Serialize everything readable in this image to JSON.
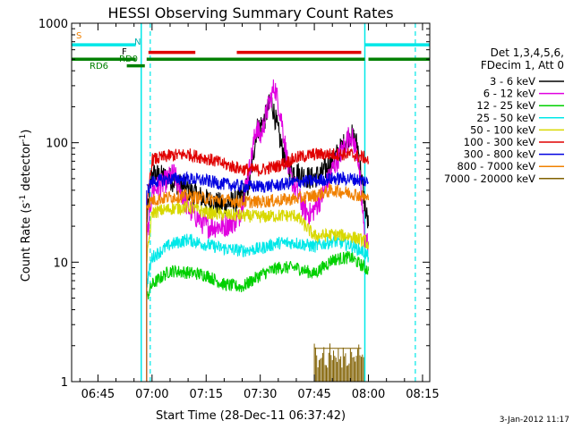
{
  "chart_data": {
    "type": "line",
    "title": "HESSI Observing Summary Count Rates",
    "xlabel": "Start Time (28-Dec-11 06:37:42)",
    "ylabel": "Count Rate (s⁻¹ detector⁻¹)",
    "ylabel_main": "Count Rate (s",
    "ylabel_sup1": "-1",
    "ylabel_mid": " detector",
    "ylabel_sup2": "-1",
    "ylabel_end": ")",
    "y_scale": "log",
    "ylim": [
      1,
      1000
    ],
    "xlim": [
      "06:37:42",
      "08:17:00"
    ],
    "x_ticks": [
      "06:45",
      "07:00",
      "07:15",
      "07:30",
      "07:45",
      "08:00",
      "08:15"
    ],
    "y_ticks": [
      "1",
      "10",
      "100",
      "1000"
    ],
    "legend_header": [
      "Det 1,3,4,5,6,",
      "FDecim 1, Att 0"
    ],
    "timestamp": "3-Jan-2012 11:17",
    "flag_labels": {
      "saa": "S",
      "night": "N",
      "flare": "F",
      "rd0": "RD0",
      "rd6": "RD6"
    },
    "series": [
      {
        "name": "3 - 6 keV",
        "color": "#000000",
        "x": [
          "06:58:30",
          "07:00",
          "07:05",
          "07:10",
          "07:15",
          "07:20",
          "07:24",
          "07:27",
          "07:29",
          "07:31",
          "07:33",
          "07:36",
          "07:38",
          "07:41",
          "07:44",
          "07:47",
          "07:50",
          "07:53",
          "07:55",
          "07:57",
          "07:59",
          "08:00"
        ],
        "values": [
          22,
          55,
          50,
          40,
          33,
          30,
          33,
          45,
          130,
          150,
          230,
          90,
          60,
          55,
          50,
          55,
          70,
          95,
          120,
          95,
          30,
          20
        ]
      },
      {
        "name": "6 - 12 keV",
        "color": "#e000e0",
        "x": [
          "06:58:30",
          "07:00",
          "07:03",
          "07:06",
          "07:10",
          "07:15",
          "07:20",
          "07:24",
          "07:27",
          "07:29",
          "07:30",
          "07:32",
          "07:34",
          "07:36",
          "07:38",
          "07:40",
          "07:42",
          "07:44",
          "07:47",
          "07:50",
          "07:53",
          "07:55",
          "07:57",
          "07:59",
          "08:00"
        ],
        "values": [
          14,
          40,
          45,
          55,
          28,
          20,
          20,
          23,
          60,
          140,
          110,
          190,
          300,
          150,
          55,
          40,
          28,
          25,
          35,
          60,
          90,
          120,
          80,
          16,
          14
        ]
      },
      {
        "name": "12 - 25 keV",
        "color": "#00d000",
        "x": [
          "06:58:30",
          "07:00",
          "07:05",
          "07:10",
          "07:15",
          "07:20",
          "07:25",
          "07:30",
          "07:35",
          "07:40",
          "07:45",
          "07:50",
          "07:55",
          "07:59",
          "08:00"
        ],
        "values": [
          5,
          6.5,
          8.5,
          8.2,
          7.8,
          6.5,
          6.2,
          7.8,
          9,
          9,
          8,
          10.5,
          11,
          9,
          8.5
        ]
      },
      {
        "name": "25 - 50 keV",
        "color": "#00e8e8",
        "x": [
          "06:58:30",
          "07:00",
          "07:05",
          "07:10",
          "07:15",
          "07:20",
          "07:25",
          "07:30",
          "07:35",
          "07:40",
          "07:45",
          "07:50",
          "07:55",
          "07:59",
          "08:00"
        ],
        "values": [
          6.5,
          11,
          14,
          15.5,
          14,
          13,
          12.5,
          13,
          14.5,
          14.5,
          13.5,
          15,
          14,
          12,
          11
        ]
      },
      {
        "name": "50 - 100 keV",
        "color": "#d8d800",
        "x": [
          "06:58:30",
          "07:00",
          "07:05",
          "07:10",
          "07:15",
          "07:20",
          "07:25",
          "07:30",
          "07:35",
          "07:40",
          "07:45",
          "07:50",
          "07:55",
          "07:59",
          "08:00"
        ],
        "values": [
          10,
          26,
          28,
          29,
          26,
          25,
          24.5,
          24,
          24.5,
          24.5,
          16.5,
          17,
          16.5,
          15,
          14
        ]
      },
      {
        "name": "100 - 300 keV",
        "color": "#e00000",
        "x": [
          "06:58:30",
          "07:00",
          "07:05",
          "07:10",
          "07:15",
          "07:20",
          "07:25",
          "07:30",
          "07:35",
          "07:40",
          "07:45",
          "07:50",
          "07:55",
          "07:59",
          "08:00"
        ],
        "values": [
          28,
          72,
          78,
          80,
          74,
          66,
          60,
          59,
          64,
          75,
          80,
          80,
          80,
          75,
          70
        ]
      },
      {
        "name": "300 - 800 keV",
        "color": "#0000e0",
        "x": [
          "06:58:30",
          "07:00",
          "07:05",
          "07:10",
          "07:15",
          "07:20",
          "07:25",
          "07:30",
          "07:35",
          "07:40",
          "07:45",
          "07:50",
          "07:55",
          "07:59",
          "08:00"
        ],
        "values": [
          40,
          47,
          50,
          50,
          48,
          45,
          43,
          43,
          44,
          47,
          48,
          50,
          50,
          48,
          46
        ]
      },
      {
        "name": "800 - 7000 keV",
        "color": "#f08000",
        "x": [
          "06:58:30",
          "07:00",
          "07:05",
          "07:10",
          "07:15",
          "07:20",
          "07:25",
          "07:30",
          "07:35",
          "07:40",
          "07:45",
          "07:50",
          "07:55",
          "07:59",
          "08:00"
        ],
        "values": [
          30,
          33,
          35,
          36,
          34,
          33,
          32,
          32,
          33,
          34,
          36,
          40,
          38,
          35,
          33
        ]
      },
      {
        "name": "7000 - 20000 keV",
        "color": "#806000",
        "x": [
          "07:45:00",
          "07:46",
          "07:47",
          "07:48",
          "07:49",
          "07:50",
          "07:51",
          "07:52",
          "07:53",
          "07:54",
          "07:55",
          "07:56",
          "07:57",
          "07:58"
        ],
        "values": [
          1.9,
          1.5,
          1.8,
          1.4,
          1.9,
          1.6,
          1.7,
          1.5,
          1.8,
          1.4,
          1.7,
          1.5,
          1.8,
          1.6
        ]
      }
    ],
    "flags": {
      "saa": {
        "color": "#00e8e8",
        "level": 660,
        "intervals": [
          [
            "06:37:42",
            "06:55:30"
          ],
          [
            "07:59:00",
            "08:17:00"
          ]
        ]
      },
      "flare": {
        "color": "#e00000",
        "level": 570,
        "intervals": [
          [
            "06:59:00",
            "07:12:00"
          ],
          [
            "07:23:30",
            "07:58:00"
          ]
        ]
      },
      "rd0": {
        "color": "#008000",
        "level": 500,
        "intervals": [
          [
            "06:37:42",
            "06:55:30"
          ],
          [
            "06:58:30",
            "07:41:00"
          ],
          [
            "07:41:00",
            "07:59:00"
          ],
          [
            "08:00:00",
            "08:17:00"
          ]
        ]
      },
      "rd6": {
        "color": "#008000",
        "level": 440,
        "intervals": [
          [
            "06:53:00",
            "06:58:00"
          ]
        ]
      }
    },
    "vlines_solid": [
      "06:57:00",
      "07:59:00"
    ],
    "vlines_dashed": [
      "06:59:30",
      "08:13:00"
    ],
    "vline_color": "#00e8e8"
  }
}
